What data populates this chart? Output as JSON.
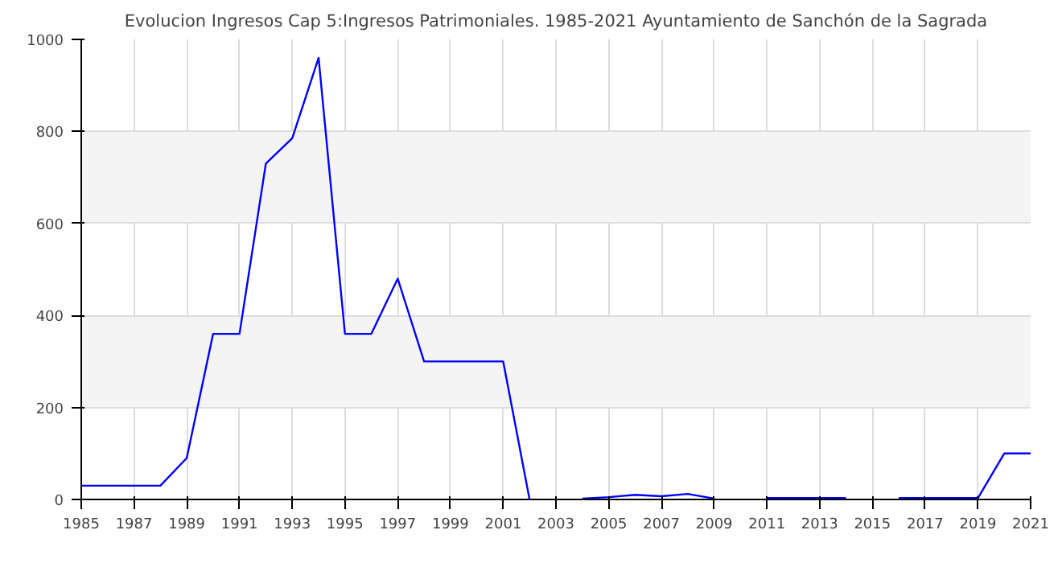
{
  "chart_data": {
    "type": "line",
    "title": "Evolucion Ingresos Cap 5:Ingresos Patrimoniales. 1985-2021 Ayuntamiento de Sanchón de la Sagrada",
    "x": [
      1985,
      1986,
      1987,
      1988,
      1989,
      1990,
      1991,
      1992,
      1993,
      1994,
      1995,
      1996,
      1997,
      1998,
      1999,
      2000,
      2001,
      2002,
      2003,
      2004,
      2005,
      2006,
      2007,
      2008,
      2009,
      2010,
      2011,
      2012,
      2013,
      2014,
      2015,
      2016,
      2017,
      2018,
      2019,
      2020,
      2021
    ],
    "series": [
      {
        "color": "#0000ff",
        "values": [
          30,
          30,
          30,
          30,
          90,
          360,
          360,
          730,
          785,
          960,
          360,
          360,
          480,
          300,
          300,
          300,
          300,
          0,
          null,
          2,
          5,
          10,
          7,
          12,
          2,
          null,
          3,
          3,
          3,
          3,
          null,
          3,
          3,
          3,
          3,
          100,
          100
        ]
      }
    ],
    "xlim": [
      1985,
      2021
    ],
    "ylim": [
      0,
      1000
    ],
    "xticks": [
      1985,
      1987,
      1989,
      1991,
      1993,
      1995,
      1997,
      1999,
      2001,
      2003,
      2005,
      2007,
      2009,
      2011,
      2013,
      2015,
      2017,
      2019,
      2021
    ],
    "yticks": [
      0,
      200,
      400,
      600,
      800,
      1000
    ],
    "grid": true,
    "marker": "none",
    "line_style": "solid"
  }
}
